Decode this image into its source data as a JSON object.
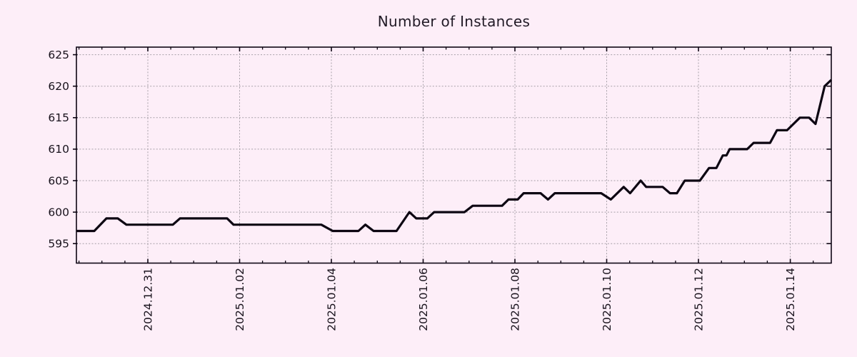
{
  "figure": {
    "background_color": "#fdeef8",
    "grid_color": "#a7a0a8",
    "axis_color": "#0e0614",
    "text_color": "#18121c"
  },
  "chart_data": {
    "type": "line",
    "title": "Number of Instances",
    "xlabel": "",
    "ylabel": "",
    "legend": null,
    "grid": true,
    "x_axis": {
      "unit": "days relative to 2024-12-31 (time axis)",
      "tick_labels": [
        "2024.12.31",
        "2025.01.02",
        "2025.01.04",
        "2025.01.06",
        "2025.01.08",
        "2025.01.10",
        "2025.01.12",
        "2025.01.14"
      ],
      "tick_values": [
        0,
        2,
        4,
        6,
        8,
        10,
        12,
        14
      ],
      "minor_tick_step": 0.5,
      "labels_rotated_degrees": -90
    },
    "y_axis": {
      "tick_labels": [
        "595",
        "600",
        "605",
        "610",
        "615",
        "620",
        "625"
      ],
      "tick_values": [
        595,
        600,
        605,
        610,
        615,
        620,
        625
      ]
    },
    "xlim": [
      -1.556,
      14.894
    ],
    "ylim": [
      591.9,
      626.2
    ],
    "series": [
      {
        "name": "instances",
        "color": "#0d0612",
        "points": [
          [
            -1.556,
            597
          ],
          [
            -1.167,
            597
          ],
          [
            -0.903,
            599
          ],
          [
            -0.654,
            599
          ],
          [
            -0.467,
            598
          ],
          [
            0.545,
            598
          ],
          [
            0.7,
            599
          ],
          [
            1.727,
            599
          ],
          [
            1.868,
            598
          ],
          [
            3.78,
            598
          ],
          [
            4.03,
            597
          ],
          [
            4.59,
            597
          ],
          [
            4.74,
            598
          ],
          [
            4.92,
            597
          ],
          [
            5.42,
            597
          ],
          [
            5.7,
            600
          ],
          [
            5.85,
            599
          ],
          [
            6.09,
            599
          ],
          [
            6.24,
            600
          ],
          [
            6.9,
            600
          ],
          [
            7.08,
            601
          ],
          [
            7.72,
            601
          ],
          [
            7.86,
            602
          ],
          [
            8.06,
            602
          ],
          [
            8.19,
            603
          ],
          [
            8.56,
            603
          ],
          [
            8.72,
            602
          ],
          [
            8.87,
            603
          ],
          [
            9.88,
            603
          ],
          [
            10.09,
            602
          ],
          [
            10.37,
            604
          ],
          [
            10.51,
            603
          ],
          [
            10.74,
            605
          ],
          [
            10.86,
            604
          ],
          [
            11.22,
            604
          ],
          [
            11.38,
            603
          ],
          [
            11.53,
            603
          ],
          [
            11.7,
            605
          ],
          [
            12.03,
            605
          ],
          [
            12.23,
            607
          ],
          [
            12.39,
            607
          ],
          [
            12.53,
            609
          ],
          [
            12.61,
            609
          ],
          [
            12.68,
            610
          ],
          [
            13.06,
            610
          ],
          [
            13.2,
            611
          ],
          [
            13.56,
            611
          ],
          [
            13.71,
            613
          ],
          [
            13.93,
            613
          ],
          [
            14.21,
            615
          ],
          [
            14.41,
            615
          ],
          [
            14.55,
            614
          ],
          [
            14.75,
            620
          ],
          [
            14.894,
            621
          ]
        ]
      }
    ]
  }
}
